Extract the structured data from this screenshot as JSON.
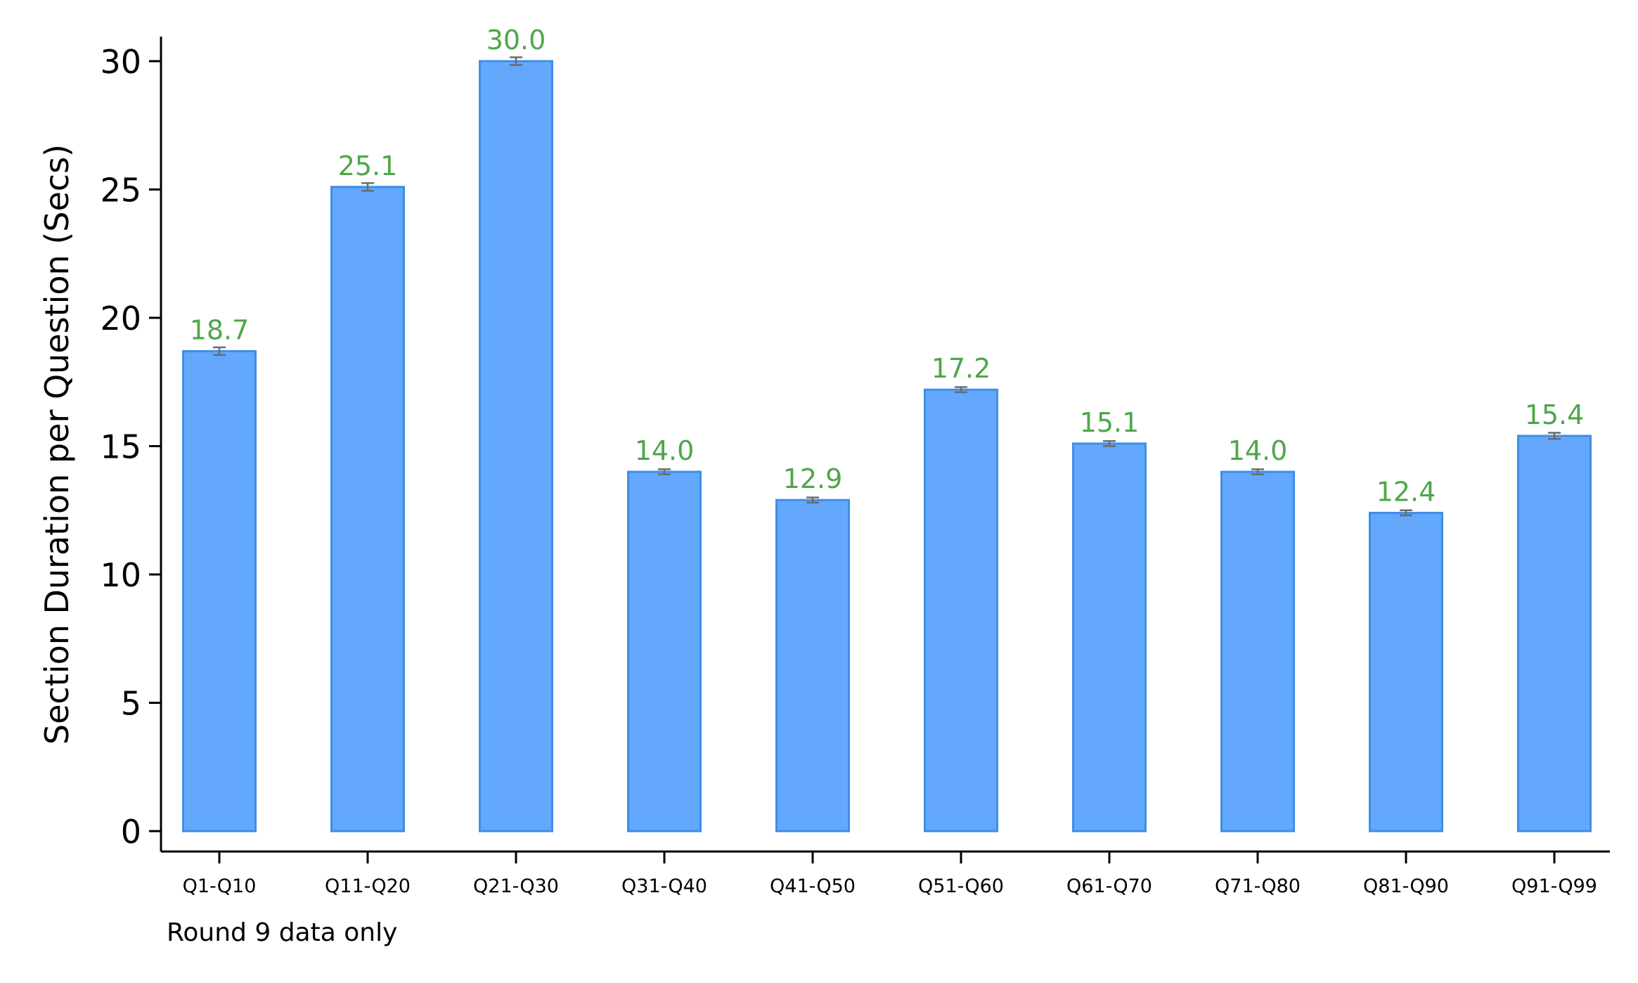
{
  "chart_data": {
    "type": "bar",
    "ylabel": "Section Duration per Question (Secs)",
    "xlabel": "",
    "note": "Round 9 data only",
    "categories": [
      "Q1-Q10",
      "Q11-Q20",
      "Q21-Q30",
      "Q31-Q40",
      "Q41-Q50",
      "Q51-Q60",
      "Q61-Q70",
      "Q71-Q80",
      "Q81-Q90",
      "Q91-Q99"
    ],
    "values": [
      18.7,
      25.1,
      30.0,
      14.0,
      12.9,
      17.2,
      15.1,
      14.0,
      12.4,
      15.4
    ],
    "value_labels": [
      "18.7",
      "25.1",
      "30.0",
      "14.0",
      "12.9",
      "17.2",
      "15.1",
      "14.0",
      "12.4",
      "15.4"
    ],
    "error_margin": [
      0.15,
      0.15,
      0.15,
      0.1,
      0.1,
      0.1,
      0.1,
      0.1,
      0.1,
      0.12
    ],
    "ylim": [
      0,
      31.2
    ],
    "yticks": [
      0,
      5,
      10,
      15,
      20,
      25,
      30
    ],
    "grid": false,
    "legend": "none",
    "colors": {
      "bar_fill": "#63a8fd",
      "bar_stroke": "#3d8ee8",
      "label": "#4ea64a",
      "error_bar": "#6b6b6b",
      "axis": "#000000"
    }
  }
}
